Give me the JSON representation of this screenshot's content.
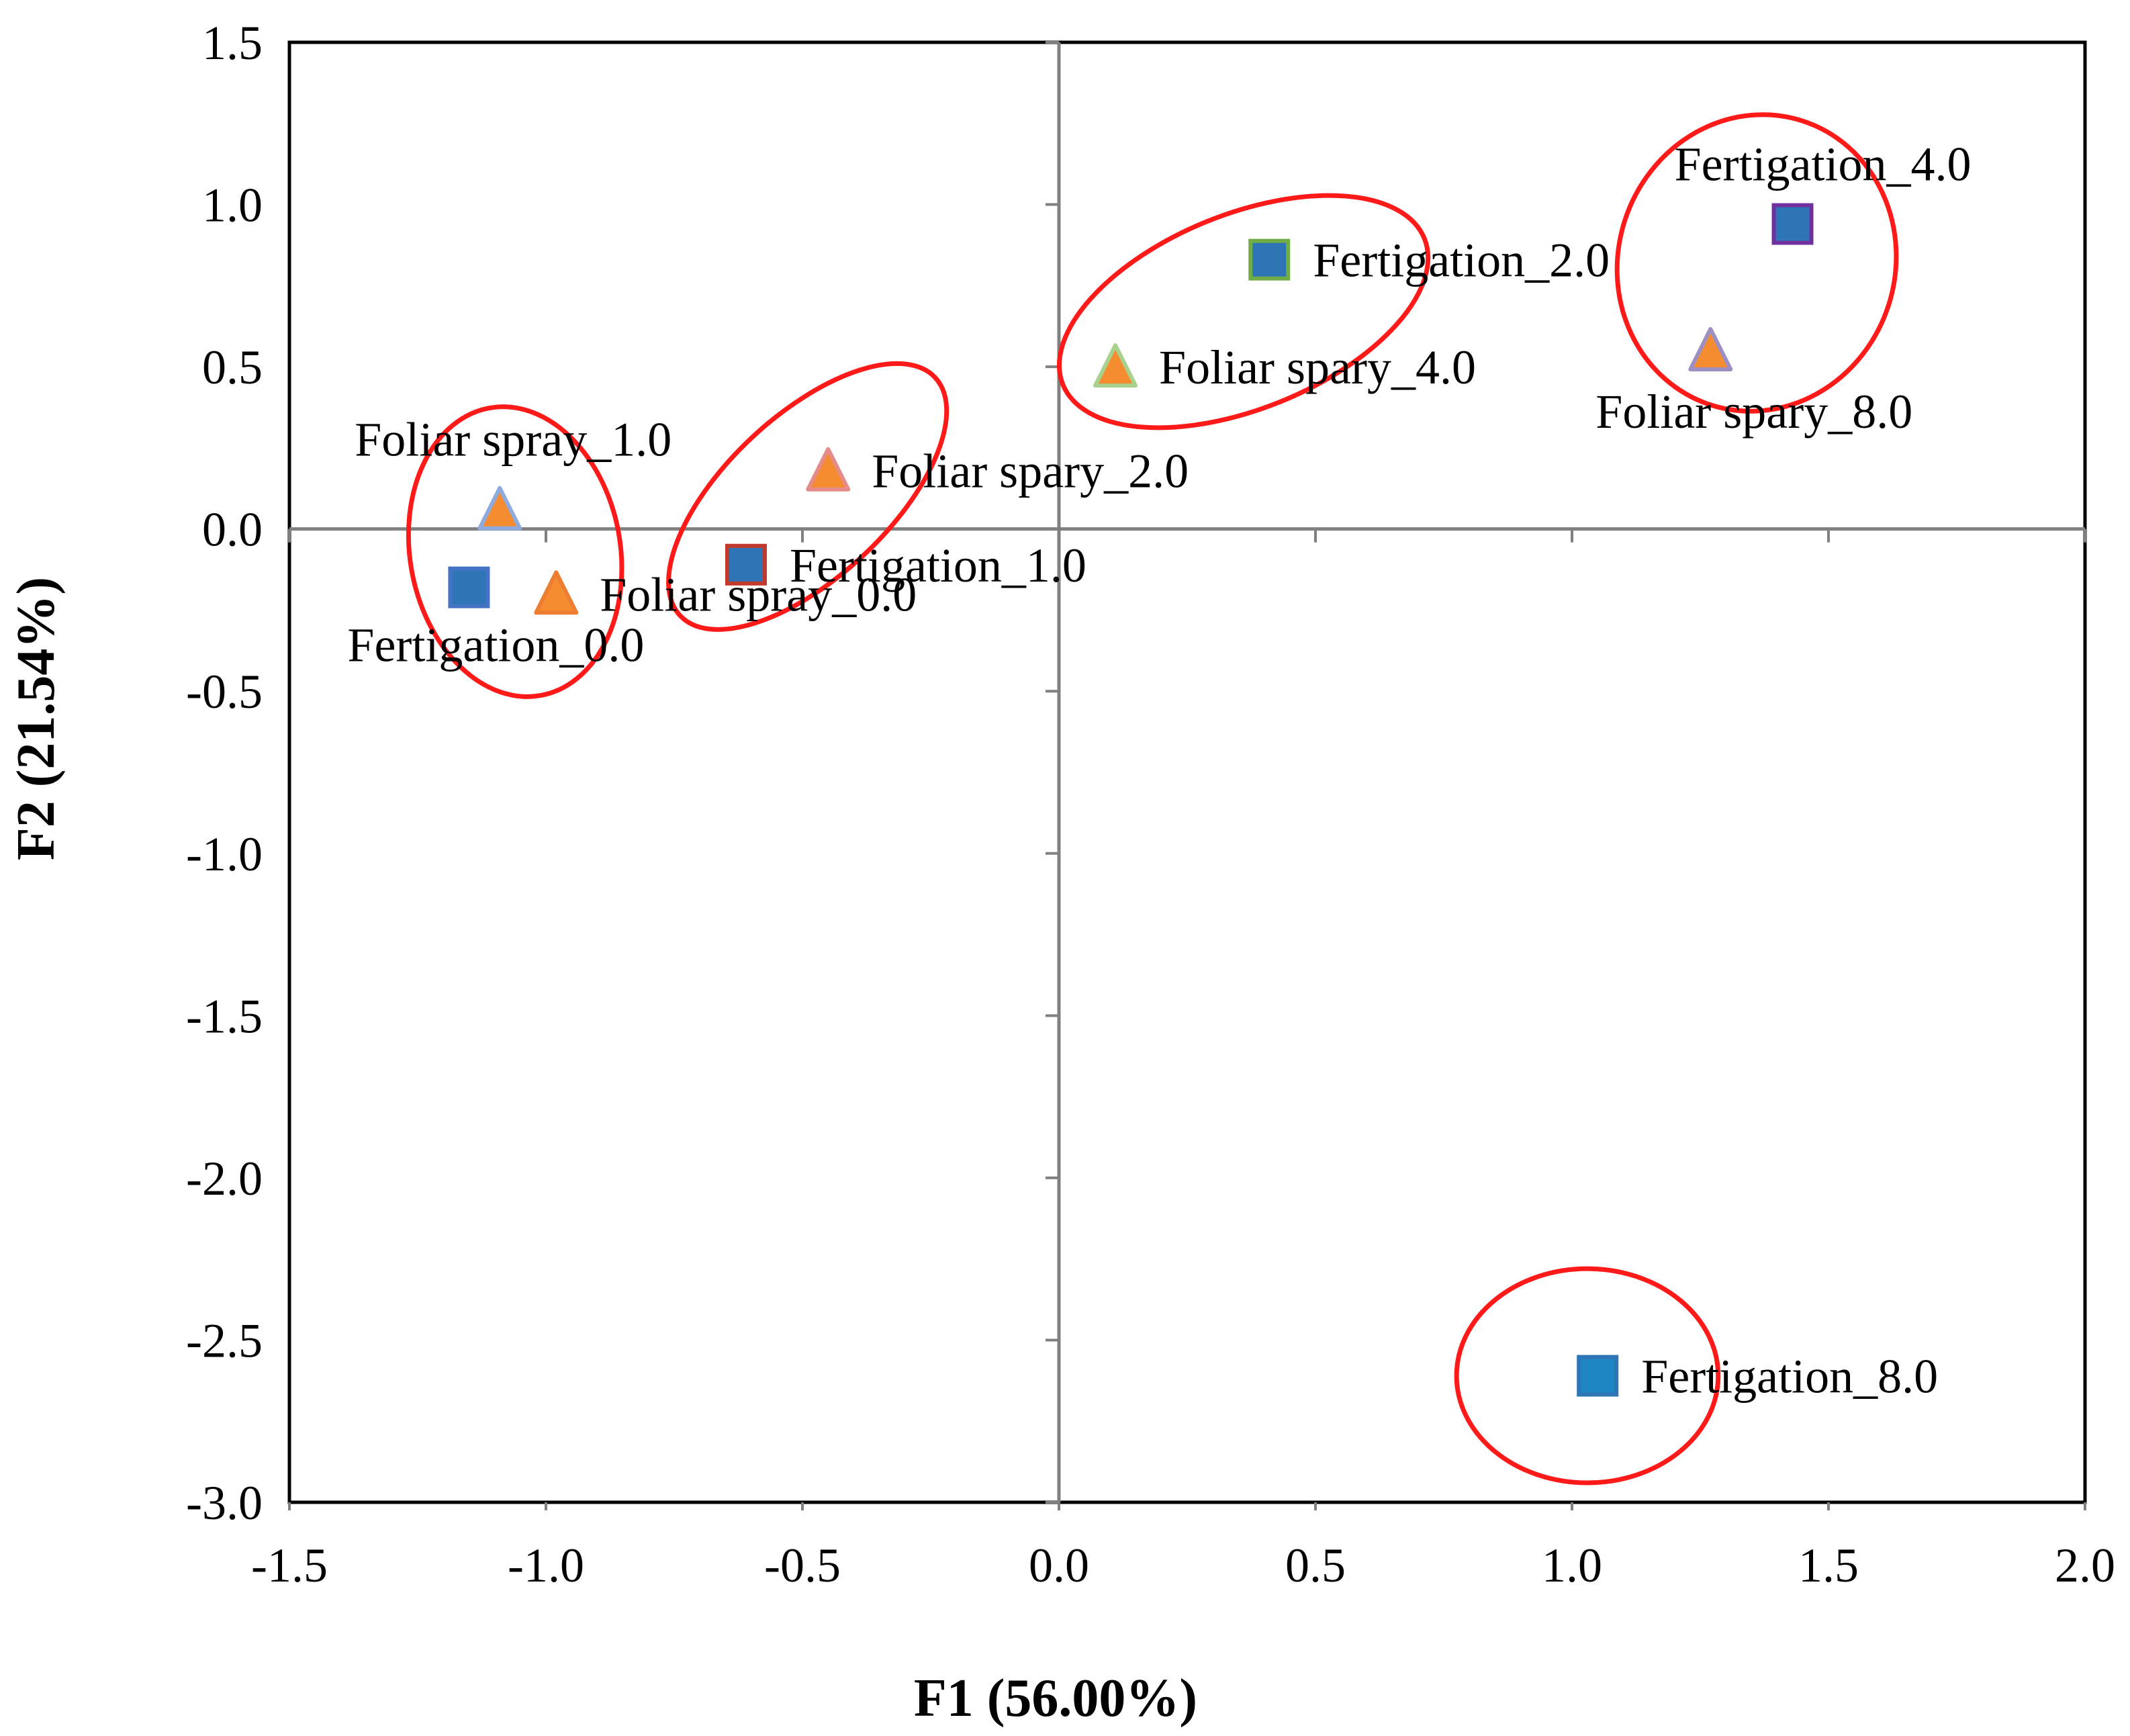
{
  "chart_data": {
    "type": "scatter",
    "title": "",
    "xlabel": "F1 (56.00%)",
    "ylabel": "F2 (21.54%)",
    "xlim": [
      -1.5,
      2.0
    ],
    "ylim": [
      -3.0,
      1.5
    ],
    "x_ticks": [
      -1.5,
      -1.0,
      -0.5,
      0.0,
      0.5,
      1.0,
      1.5,
      2.0
    ],
    "y_ticks": [
      -3.0,
      -2.5,
      -2.0,
      -1.5,
      -1.0,
      -0.5,
      0.0,
      0.5,
      1.0,
      1.5
    ],
    "x_tick_labels": [
      "-1.5",
      "-1.0",
      "-0.5",
      "0.0",
      "0.5",
      "1.0",
      "1.5",
      "2.0"
    ],
    "y_tick_labels": [
      "-3.0",
      "-2.5",
      "-2.0",
      "-1.5",
      "-1.0",
      "-0.5",
      "0.0",
      "0.5",
      "1.0",
      "1.5"
    ],
    "grid": false,
    "points": [
      {
        "label": "Fertigation_0.0",
        "x": -1.15,
        "y": -0.18,
        "marker": "square",
        "fill": "#2e75b6",
        "stroke": "#4472c4",
        "label_pos": "below-left"
      },
      {
        "label": "Foliar spray_0.0",
        "x": -0.98,
        "y": -0.2,
        "marker": "triangle",
        "fill": "#f58d30",
        "stroke": "#ed7d31",
        "label_pos": "right"
      },
      {
        "label": "Foliar spray_1.0",
        "x": -1.09,
        "y": 0.06,
        "marker": "triangle",
        "fill": "#f58d30",
        "stroke": "#8faadc",
        "label_pos": "above"
      },
      {
        "label": "Fertigation_1.0",
        "x": -0.61,
        "y": -0.11,
        "marker": "square",
        "fill": "#2e75b6",
        "stroke": "#c0392b",
        "label_pos": "right"
      },
      {
        "label": "Foliar spary_2.0",
        "x": -0.45,
        "y": 0.18,
        "marker": "triangle",
        "fill": "#f58d30",
        "stroke": "#e58c8a",
        "label_pos": "right"
      },
      {
        "label": "Foliar spary_4.0",
        "x": 0.11,
        "y": 0.5,
        "marker": "triangle",
        "fill": "#f58d30",
        "stroke": "#a9d18e",
        "label_pos": "right"
      },
      {
        "label": "Fertigation_2.0",
        "x": 0.41,
        "y": 0.83,
        "marker": "square",
        "fill": "#2e75b6",
        "stroke": "#70ad47",
        "label_pos": "right"
      },
      {
        "label": "Foliar spary_8.0",
        "x": 1.27,
        "y": 0.55,
        "marker": "triangle",
        "fill": "#f58d30",
        "stroke": "#9e8fc2",
        "label_pos": "below"
      },
      {
        "label": "Fertigation_4.0",
        "x": 1.43,
        "y": 0.94,
        "marker": "square",
        "fill": "#2e75b6",
        "stroke": "#7030a0",
        "label_pos": "above-left"
      },
      {
        "label": "Fertigation_8.0",
        "x": 1.05,
        "y": -2.61,
        "marker": "square",
        "fill": "#1f86c4",
        "stroke": "#2e75b6",
        "label_pos": "right"
      }
    ],
    "cluster_ellipses": [
      {
        "members": [
          "Fertigation_0.0",
          "Foliar spray_0.0",
          "Foliar spray_1.0"
        ],
        "cx": -1.06,
        "cy": -0.07,
        "rx": 0.205,
        "ry": 0.45,
        "rotate": -10
      },
      {
        "members": [
          "Fertigation_1.0",
          "Foliar spary_2.0"
        ],
        "cx": -0.49,
        "cy": 0.1,
        "rx": 0.34,
        "ry": 0.25,
        "rotate": -43
      },
      {
        "members": [
          "Foliar spary_4.0",
          "Fertigation_2.0"
        ],
        "cx": 0.36,
        "cy": 0.67,
        "rx": 0.38,
        "ry": 0.3,
        "rotate": -22
      },
      {
        "members": [
          "Foliar spary_8.0",
          "Fertigation_4.0"
        ],
        "cx": 1.36,
        "cy": 0.82,
        "rx": 0.27,
        "ry": 0.46,
        "rotate": 18
      },
      {
        "members": [
          "Fertigation_8.0"
        ],
        "cx": 1.03,
        "cy": -2.61,
        "rx": 0.255,
        "ry": 0.33,
        "rotate": 0
      }
    ],
    "colors": {
      "ellipse": "#ff1a1a",
      "axis": "#808080",
      "frame": "#000000"
    }
  }
}
